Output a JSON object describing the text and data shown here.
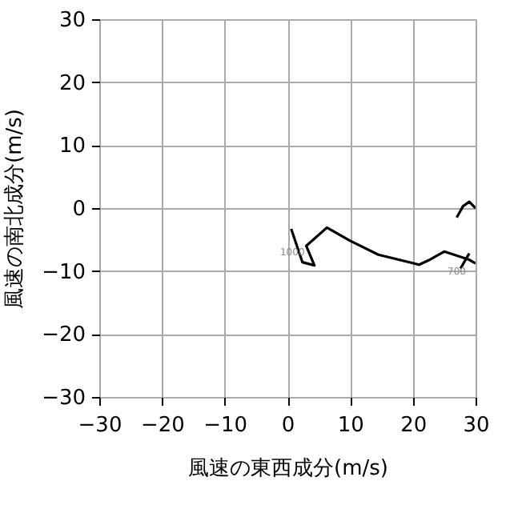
{
  "chart_data": {
    "type": "line",
    "xlabel": "風速の東西成分(m/s)",
    "ylabel": "風速の南北成分(m/s)",
    "series": [
      {
        "color": "#000000",
        "x": [
          0.6,
          2.4,
          4.3,
          3.0,
          6.3,
          10.0,
          14.5,
          21.0,
          22.5,
          25.0,
          29.0,
          30.0
        ],
        "values": [
          -3.3,
          -8.6,
          -9.1,
          -6.0,
          -3.1,
          -5.2,
          -7.4,
          -9.0,
          -8.3,
          -6.9,
          -8.2,
          -8.8
        ]
      },
      {
        "color": "#000000",
        "x": [
          27.6,
          29.0
        ],
        "values": [
          -9.6,
          -7.2
        ]
      },
      {
        "color": "#000000",
        "x": [
          27.0,
          28.0,
          29.0,
          30.0
        ],
        "values": [
          -1.5,
          0.3,
          1.0,
          0.0
        ]
      }
    ],
    "annotations": [
      {
        "text": "1000",
        "x": 0.8,
        "y": -7.0
      },
      {
        "text": "700",
        "x": 27.0,
        "y": -10.0
      }
    ],
    "xlim": [
      -30,
      30
    ],
    "ylim": [
      -30,
      30
    ],
    "xticks": [
      -30,
      -20,
      -10,
      0,
      10,
      20,
      30
    ],
    "yticks": [
      -30,
      -20,
      -10,
      0,
      10,
      20,
      30
    ],
    "grid": true,
    "marker": "none",
    "line_style": "solid"
  }
}
